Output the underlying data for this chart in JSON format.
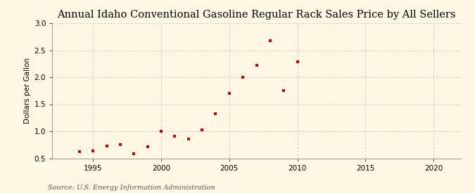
{
  "title": "Annual Idaho Conventional Gasoline Regular Rack Sales Price by All Sellers",
  "ylabel": "Dollars per Gallon",
  "source": "Source: U.S. Energy Information Administration",
  "background_color": "#fdf6e3",
  "plot_bg_color": "#fdf6e3",
  "marker_color": "#cc0000",
  "years": [
    1994,
    1995,
    1996,
    1997,
    1998,
    1999,
    2000,
    2001,
    2002,
    2003,
    2004,
    2005,
    2006,
    2007,
    2008,
    2009,
    2010
  ],
  "values": [
    0.62,
    0.63,
    0.73,
    0.75,
    0.58,
    0.72,
    1.0,
    0.91,
    0.86,
    1.02,
    1.32,
    1.7,
    2.0,
    2.22,
    2.67,
    1.75,
    2.28
  ],
  "xlim": [
    1992,
    2022
  ],
  "ylim": [
    0.5,
    3.0
  ],
  "xticks": [
    1995,
    2000,
    2005,
    2010,
    2015,
    2020
  ],
  "yticks": [
    0.5,
    1.0,
    1.5,
    2.0,
    2.5,
    3.0
  ],
  "grid_color": "#bbbbbb",
  "title_fontsize": 10.5,
  "label_fontsize": 7.5,
  "tick_fontsize": 7.5,
  "source_fontsize": 7
}
